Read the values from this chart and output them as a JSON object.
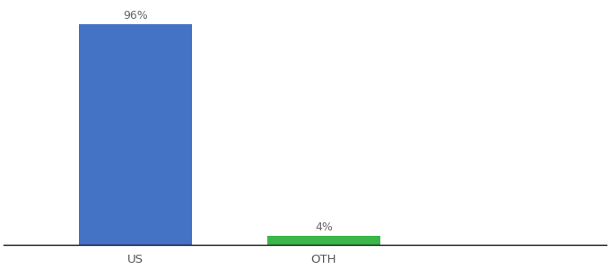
{
  "categories": [
    "US",
    "OTH"
  ],
  "values": [
    96,
    4
  ],
  "bar_colors": [
    "#4472c4",
    "#3cb54a"
  ],
  "label_texts": [
    "96%",
    "4%"
  ],
  "ylim": [
    0,
    105
  ],
  "background_color": "#ffffff",
  "bar_width": 0.6,
  "label_fontsize": 9,
  "tick_fontsize": 9.5,
  "tick_color": "#555555",
  "axis_line_color": "#111111",
  "x_positions": [
    1.0,
    2.0
  ],
  "xlim": [
    0.3,
    3.5
  ]
}
